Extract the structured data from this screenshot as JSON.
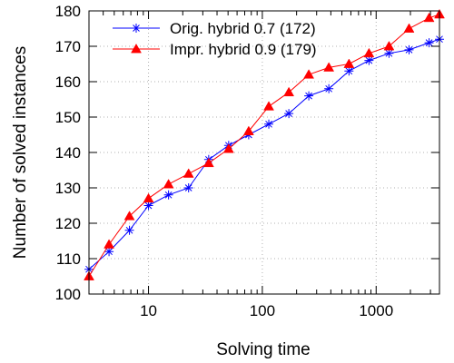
{
  "chart_data": {
    "type": "line",
    "title": "",
    "xlabel": "Solving time",
    "ylabel": "Number of solved instances",
    "xscale": "log",
    "xlim": [
      3,
      3600
    ],
    "ylim": [
      100,
      180
    ],
    "xticks": [
      {
        "value": 10,
        "label": "10"
      },
      {
        "value": 100,
        "label": "100"
      },
      {
        "value": 1000,
        "label": "1000"
      }
    ],
    "yticks": [
      {
        "value": 100,
        "label": "100"
      },
      {
        "value": 110,
        "label": "110"
      },
      {
        "value": 120,
        "label": "120"
      },
      {
        "value": 130,
        "label": "130"
      },
      {
        "value": 140,
        "label": "140"
      },
      {
        "value": 150,
        "label": "150"
      },
      {
        "value": 160,
        "label": "160"
      },
      {
        "value": 170,
        "label": "170"
      },
      {
        "value": 180,
        "label": "180"
      }
    ],
    "grid": true,
    "legend_position": "top-left",
    "series": [
      {
        "name": "Orig. hybrid 0.7 (172)",
        "color": "#0000ff",
        "marker": "asterisk",
        "x": [
          3,
          4.5,
          6.8,
          10,
          15,
          22.5,
          33.8,
          50.6,
          75.9,
          114,
          171,
          256,
          384,
          577,
          865,
          1297,
          1946,
          2919,
          3600
        ],
        "y": [
          107,
          112,
          118,
          125,
          128,
          130,
          138,
          142,
          145,
          148,
          151,
          156,
          158,
          163,
          166,
          168,
          169,
          171,
          172
        ]
      },
      {
        "name": "Impr. hybrid 0.9 (179)",
        "color": "#ff0000",
        "marker": "triangle",
        "x": [
          3,
          4.5,
          6.8,
          10,
          15,
          22.5,
          33.8,
          50.6,
          75.9,
          114,
          171,
          256,
          384,
          577,
          865,
          1297,
          1946,
          2919,
          3600
        ],
        "y": [
          105,
          114,
          122,
          127,
          131,
          134,
          137,
          141,
          146,
          153,
          157,
          162,
          164,
          165,
          168,
          170,
          175,
          178,
          179
        ]
      }
    ]
  }
}
